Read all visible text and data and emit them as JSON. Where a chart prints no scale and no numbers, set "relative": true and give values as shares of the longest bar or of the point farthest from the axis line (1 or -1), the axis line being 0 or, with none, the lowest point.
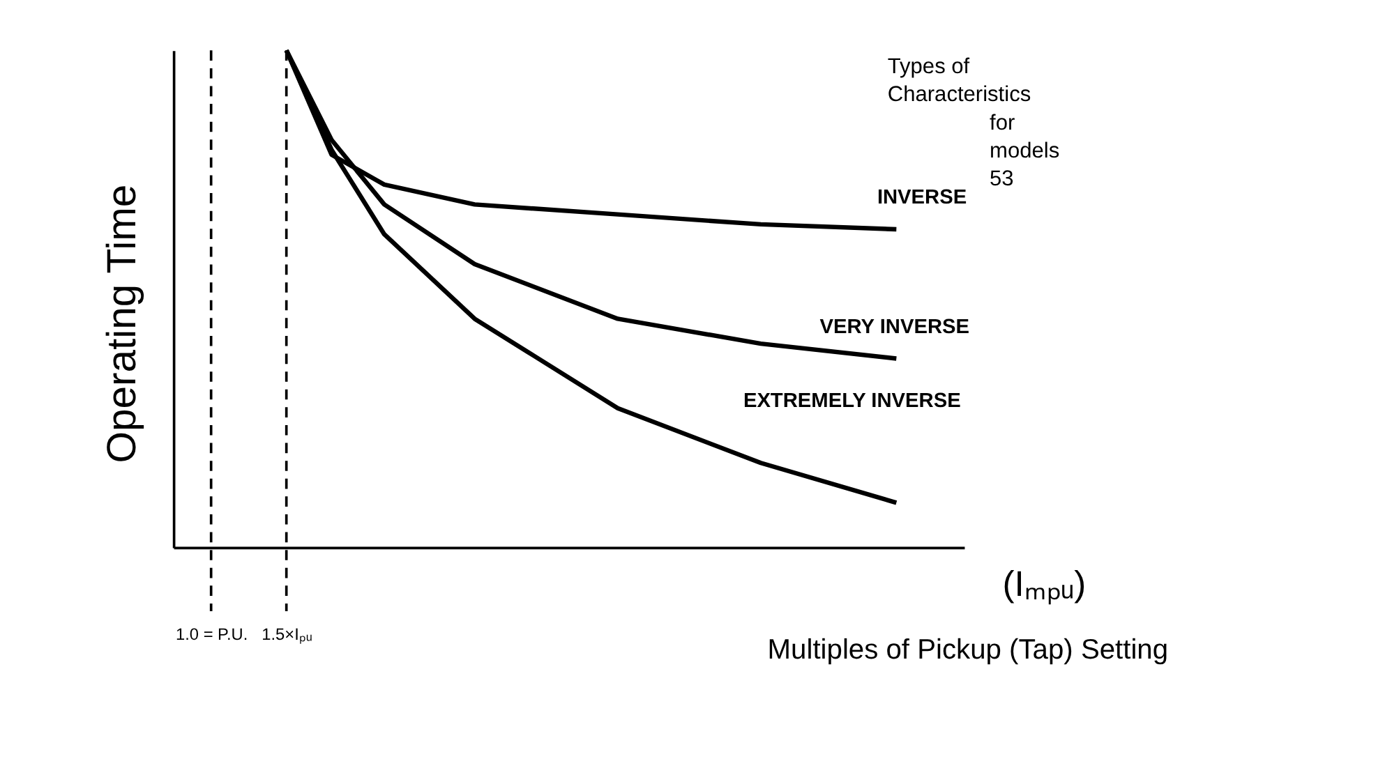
{
  "chart_data": {
    "type": "line",
    "relative": true,
    "xlabel": "Multiples of Pickup (Tap) Setting",
    "ylabel": "Operating Time",
    "x": [
      1.5,
      1.8,
      2.15,
      2.75,
      3.7,
      4.65,
      5.55
    ],
    "xlim": [
      0.75,
      6.0
    ],
    "xticks": [
      {
        "value": 1.0,
        "label": "1.0 = P.U."
      },
      {
        "value": 1.5,
        "label": "1.5×Iₚᵤ"
      }
    ],
    "tick_labels": "x",
    "grid": false,
    "marker": "none",
    "line_style": "solid",
    "series": [
      {
        "name": "INVERSE",
        "color": "#000000",
        "values": [
          1,
          0.79,
          0.73,
          0.69,
          0.67,
          0.65,
          0.64
        ]
      },
      {
        "name": "VERY INVERSE",
        "color": "#000000",
        "values": [
          1,
          0.82,
          0.69,
          0.57,
          0.46,
          0.41,
          0.38
        ]
      },
      {
        "name": "EXTREMELY INVERSE",
        "color": "#000000",
        "values": [
          1,
          0.8,
          0.63,
          0.46,
          0.28,
          0.17,
          0.09
        ]
      }
    ],
    "ref_lines": [
      {
        "axis": "x",
        "value": 1.0,
        "color": "#000000",
        "line_style": "dashed"
      },
      {
        "axis": "x",
        "value": 1.5,
        "color": "#000000",
        "line_style": "dashed"
      }
    ],
    "annotations": [
      "(Iₘₚᵤ)",
      "Types of Characteristics for models 53"
    ]
  }
}
